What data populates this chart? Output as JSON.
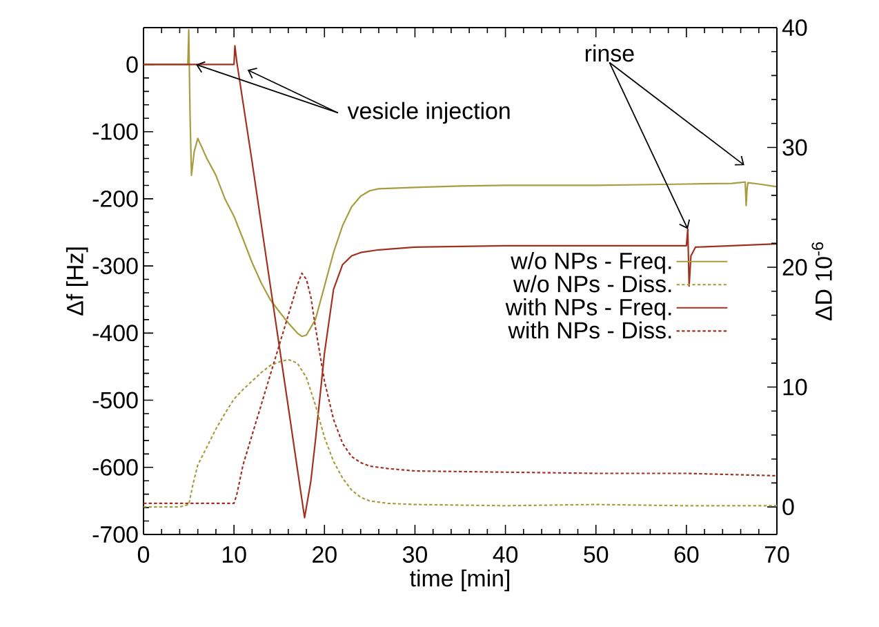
{
  "chart_data": {
    "type": "line",
    "xlabel": "time [min]",
    "ylabel": "Δf [Hz]",
    "y2label": "ΔD 10$^{-6}$",
    "xlim": [
      0,
      70
    ],
    "xticks": [
      0,
      10,
      20,
      30,
      40,
      50,
      60,
      70
    ],
    "ylim": [
      -700,
      55
    ],
    "yticks": [
      -700,
      -600,
      -500,
      -400,
      -300,
      -200,
      -100,
      0
    ],
    "y2lim": [
      -2.3,
      40
    ],
    "y2ticks": [
      0,
      10,
      20,
      30,
      40
    ],
    "legend": "right",
    "annotations": [
      {
        "text": "vesicle injection",
        "x": 5.8,
        "y": 0
      },
      {
        "text": "rinse",
        "x": 60.15,
        "y": -245
      }
    ],
    "series": [
      {
        "name": "w/o NPs - Freq.",
        "color": "#a89d3e",
        "line_style": "solid",
        "x": [
          0,
          4.9,
          5.0,
          5.15,
          5.3,
          5.6,
          6.0,
          7,
          8,
          9,
          10,
          11,
          12,
          13,
          14,
          15,
          16,
          17,
          17.5,
          18,
          19,
          20,
          21,
          22,
          23,
          24,
          25,
          26,
          28,
          30,
          35,
          40,
          45,
          50,
          55,
          60,
          65,
          66.5,
          66.6,
          66.7,
          66.8,
          68,
          70
        ],
        "values": [
          0,
          0,
          52,
          -80,
          -165,
          -130,
          -110,
          -140,
          -165,
          -200,
          -226,
          -260,
          -295,
          -325,
          -350,
          -368,
          -385,
          -400,
          -405,
          -403,
          -380,
          -330,
          -280,
          -240,
          -212,
          -196,
          -188,
          -185,
          -184,
          -183,
          -181,
          -180,
          -180,
          -180,
          -179,
          -178,
          -177,
          -175,
          -210,
          -185,
          -176,
          -178,
          -182
        ]
      },
      {
        "name": "w/o NPs - Diss.",
        "color": "#a89d3e",
        "line_style": "dashed",
        "axis": "y2",
        "x": [
          0,
          4,
          5,
          5.5,
          6,
          7,
          8,
          9,
          10,
          11,
          12,
          13,
          14,
          15,
          16,
          17,
          18,
          19,
          20,
          21,
          22,
          23,
          24,
          25,
          27,
          30,
          40,
          50,
          60,
          70
        ],
        "values": [
          0,
          0,
          0.2,
          2,
          3.5,
          5,
          6.5,
          7.8,
          9,
          9.8,
          10.5,
          11.2,
          11.8,
          12.1,
          12.3,
          12,
          10.8,
          8.5,
          5.8,
          3.8,
          2.4,
          1.4,
          0.8,
          0.5,
          0.3,
          0.2,
          0.1,
          0.2,
          0.1,
          0.1
        ]
      },
      {
        "name": "with NPs - Freq.",
        "color": "#a1301f",
        "line_style": "solid",
        "x": [
          0,
          10.0,
          10.1,
          10.3,
          12,
          14,
          16,
          17,
          17.8,
          18.5,
          19,
          20,
          21,
          22,
          23,
          24,
          26,
          30,
          35,
          40,
          45,
          50,
          55,
          60,
          60.15,
          60.3,
          60.5,
          61,
          65,
          70
        ],
        "values": [
          0,
          0,
          28,
          5,
          -145,
          -328,
          -510,
          -602,
          -675,
          -620,
          -560,
          -430,
          -335,
          -298,
          -285,
          -280,
          -276,
          -272,
          -271,
          -270,
          -270,
          -270,
          -270,
          -270,
          -245,
          -330,
          -285,
          -272,
          -270,
          -267
        ]
      },
      {
        "name": "with NPs - Diss.",
        "color": "#a1301f",
        "line_style": "dashed",
        "axis": "y2",
        "x": [
          0,
          5,
          10,
          10.3,
          11,
          12,
          13,
          14,
          15,
          16,
          17,
          17.5,
          18,
          18.5,
          19,
          20,
          21,
          22,
          23,
          24,
          25,
          27,
          30,
          40,
          50,
          60,
          70
        ],
        "values": [
          0.3,
          0.3,
          0.3,
          1,
          3.5,
          6,
          8.5,
          11,
          13.5,
          16,
          18.5,
          19.5,
          19,
          17.5,
          15,
          10.5,
          7.3,
          5.3,
          4.2,
          3.7,
          3.4,
          3.2,
          3.0,
          2.9,
          2.8,
          2.8,
          2.6
        ]
      }
    ]
  }
}
